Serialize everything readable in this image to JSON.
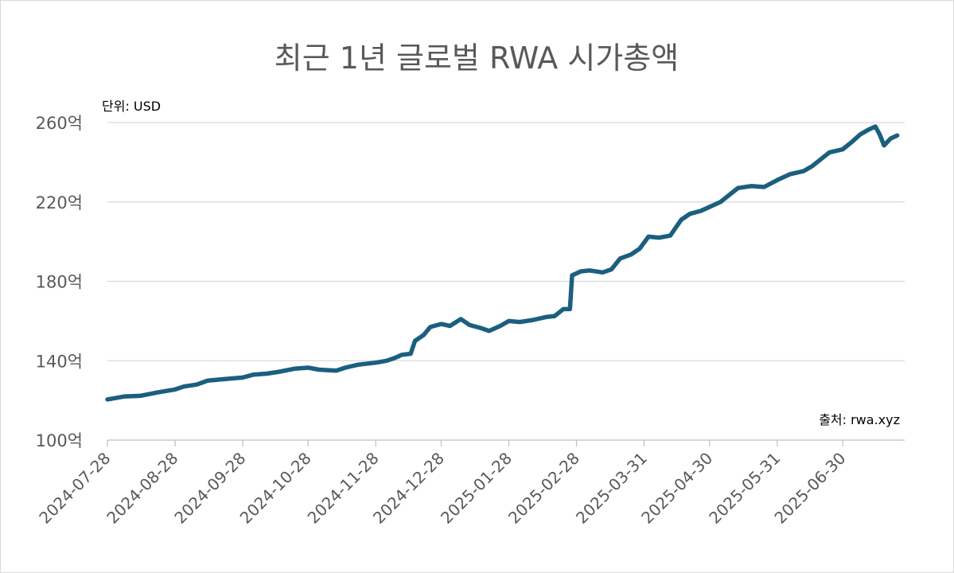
{
  "chart_data": {
    "type": "line",
    "title": "최근 1년 글로벌 RWA 시가총액",
    "unit_label": "단위: USD",
    "source_label": "출처: rwa.xyz",
    "y_ticks": [
      {
        "value": 100,
        "label": "100억"
      },
      {
        "value": 140,
        "label": "140억"
      },
      {
        "value": 180,
        "label": "180억"
      },
      {
        "value": 220,
        "label": "220억"
      },
      {
        "value": 260,
        "label": "260억"
      }
    ],
    "ylim": [
      100,
      260
    ],
    "x_ticks": [
      "2024-07-28",
      "2024-08-28",
      "2024-09-28",
      "2024-10-28",
      "2024-11-28",
      "2024-12-28",
      "2025-01-28",
      "2025-02-28",
      "2025-03-31",
      "2025-04-30",
      "2025-05-31",
      "2025-06-30"
    ],
    "grid": true,
    "line_color": "#1b5f7f",
    "series": [
      {
        "values": [
          [
            "2024-07-28",
            120.5
          ],
          [
            "2024-08-05",
            122.0
          ],
          [
            "2024-08-12",
            122.3
          ],
          [
            "2024-08-20",
            124.0
          ],
          [
            "2024-08-28",
            125.5
          ],
          [
            "2024-09-01",
            127.0
          ],
          [
            "2024-09-07",
            128.0
          ],
          [
            "2024-09-12",
            130.0
          ],
          [
            "2024-09-20",
            130.8
          ],
          [
            "2024-09-28",
            131.5
          ],
          [
            "2024-10-03",
            133.0
          ],
          [
            "2024-10-09",
            133.5
          ],
          [
            "2024-10-15",
            134.5
          ],
          [
            "2024-10-22",
            136.0
          ],
          [
            "2024-10-28",
            136.5
          ],
          [
            "2024-11-02",
            135.5
          ],
          [
            "2024-11-10",
            135.0
          ],
          [
            "2024-11-14",
            136.5
          ],
          [
            "2024-11-20",
            138.0
          ],
          [
            "2024-11-28",
            139.0
          ],
          [
            "2024-12-03",
            140.0
          ],
          [
            "2024-12-07",
            141.5
          ],
          [
            "2024-12-10",
            143.0
          ],
          [
            "2024-12-14",
            143.5
          ],
          [
            "2024-12-16",
            150.0
          ],
          [
            "2024-12-20",
            153.0
          ],
          [
            "2024-12-23",
            157.0
          ],
          [
            "2024-12-28",
            158.5
          ],
          [
            "2025-01-01",
            157.5
          ],
          [
            "2025-01-06",
            161.0
          ],
          [
            "2025-01-10",
            158.0
          ],
          [
            "2025-01-15",
            156.5
          ],
          [
            "2025-01-19",
            155.0
          ],
          [
            "2025-01-24",
            157.5
          ],
          [
            "2025-01-28",
            160.0
          ],
          [
            "2025-02-02",
            159.5
          ],
          [
            "2025-02-08",
            160.5
          ],
          [
            "2025-02-14",
            162.0
          ],
          [
            "2025-02-18",
            162.5
          ],
          [
            "2025-02-22",
            166.0
          ],
          [
            "2025-02-25",
            166.0
          ],
          [
            "2025-02-26",
            183.0
          ],
          [
            "2025-03-02",
            185.0
          ],
          [
            "2025-03-06",
            185.5
          ],
          [
            "2025-03-12",
            184.5
          ],
          [
            "2025-03-16",
            186.0
          ],
          [
            "2025-03-20",
            191.5
          ],
          [
            "2025-03-25",
            193.5
          ],
          [
            "2025-03-29",
            196.5
          ],
          [
            "2025-04-02",
            202.5
          ],
          [
            "2025-04-07",
            202.0
          ],
          [
            "2025-04-12",
            203.0
          ],
          [
            "2025-04-17",
            211.0
          ],
          [
            "2025-04-21",
            214.0
          ],
          [
            "2025-04-26",
            215.5
          ],
          [
            "2025-04-30",
            217.5
          ],
          [
            "2025-05-05",
            220.0
          ],
          [
            "2025-05-09",
            223.5
          ],
          [
            "2025-05-13",
            227.0
          ],
          [
            "2025-05-19",
            228.0
          ],
          [
            "2025-05-25",
            227.5
          ],
          [
            "2025-05-31",
            231.0
          ],
          [
            "2025-06-06",
            234.0
          ],
          [
            "2025-06-12",
            235.5
          ],
          [
            "2025-06-16",
            238.0
          ],
          [
            "2025-06-20",
            241.5
          ],
          [
            "2025-06-24",
            245.0
          ],
          [
            "2025-06-30",
            246.5
          ],
          [
            "2025-07-04",
            250.0
          ],
          [
            "2025-07-08",
            254.0
          ],
          [
            "2025-07-12",
            256.5
          ],
          [
            "2025-07-15",
            258.0
          ],
          [
            "2025-07-17",
            254.0
          ],
          [
            "2025-07-19",
            248.5
          ],
          [
            "2025-07-22",
            252.0
          ],
          [
            "2025-07-25",
            253.5
          ]
        ]
      }
    ]
  }
}
